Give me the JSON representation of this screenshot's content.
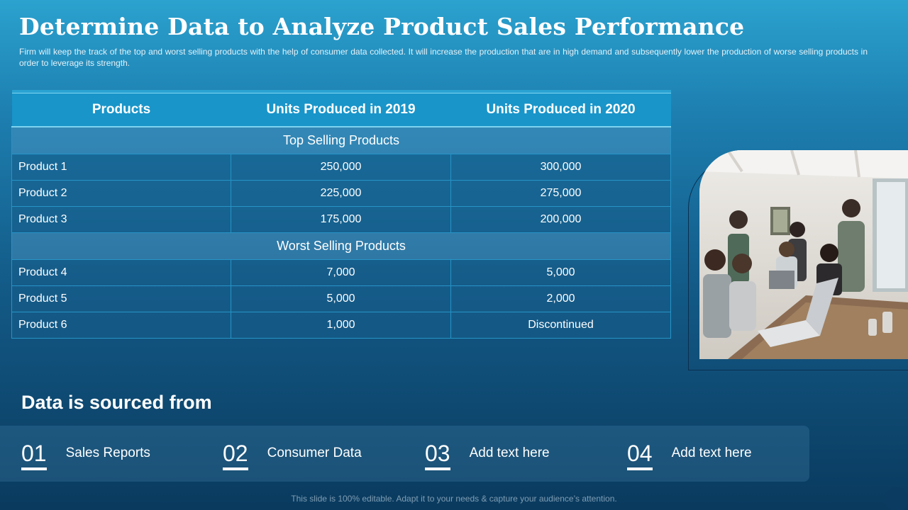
{
  "header": {
    "title": "Determine Data to Analyze Product Sales Performance",
    "subtitle": "Firm will keep the track of the top and worst selling products with the help of consumer data collected. It will increase the production that are in high demand and subsequently lower the production of worse selling products in order to leverage  its strength."
  },
  "table": {
    "columns": [
      "Products",
      "Units Produced in 2019",
      "Units Produced in 2020"
    ],
    "sections": [
      {
        "label": "Top Selling Products",
        "rows": [
          [
            "Product 1",
            "250,000",
            "300,000"
          ],
          [
            "Product 2",
            "225,000",
            "275,000"
          ],
          [
            "Product 3",
            "175,000",
            "200,000"
          ]
        ]
      },
      {
        "label": "Worst Selling Products",
        "rows": [
          [
            "Product 4",
            "7,000",
            "5,000"
          ],
          [
            "Product 5",
            "5,000",
            "2,000"
          ],
          [
            "Product 6",
            "1,000",
            "Discontinued"
          ]
        ]
      }
    ]
  },
  "sources": {
    "heading": "Data is sourced from",
    "items": [
      {
        "num": "01",
        "label": "Sales Reports"
      },
      {
        "num": "02",
        "label": "Consumer Data"
      },
      {
        "num": "03",
        "label": "Add text here"
      },
      {
        "num": "04",
        "label": "Add text here"
      }
    ]
  },
  "footer": "This slide is 100% editable. Adapt it to your needs & capture your audience’s attention."
}
